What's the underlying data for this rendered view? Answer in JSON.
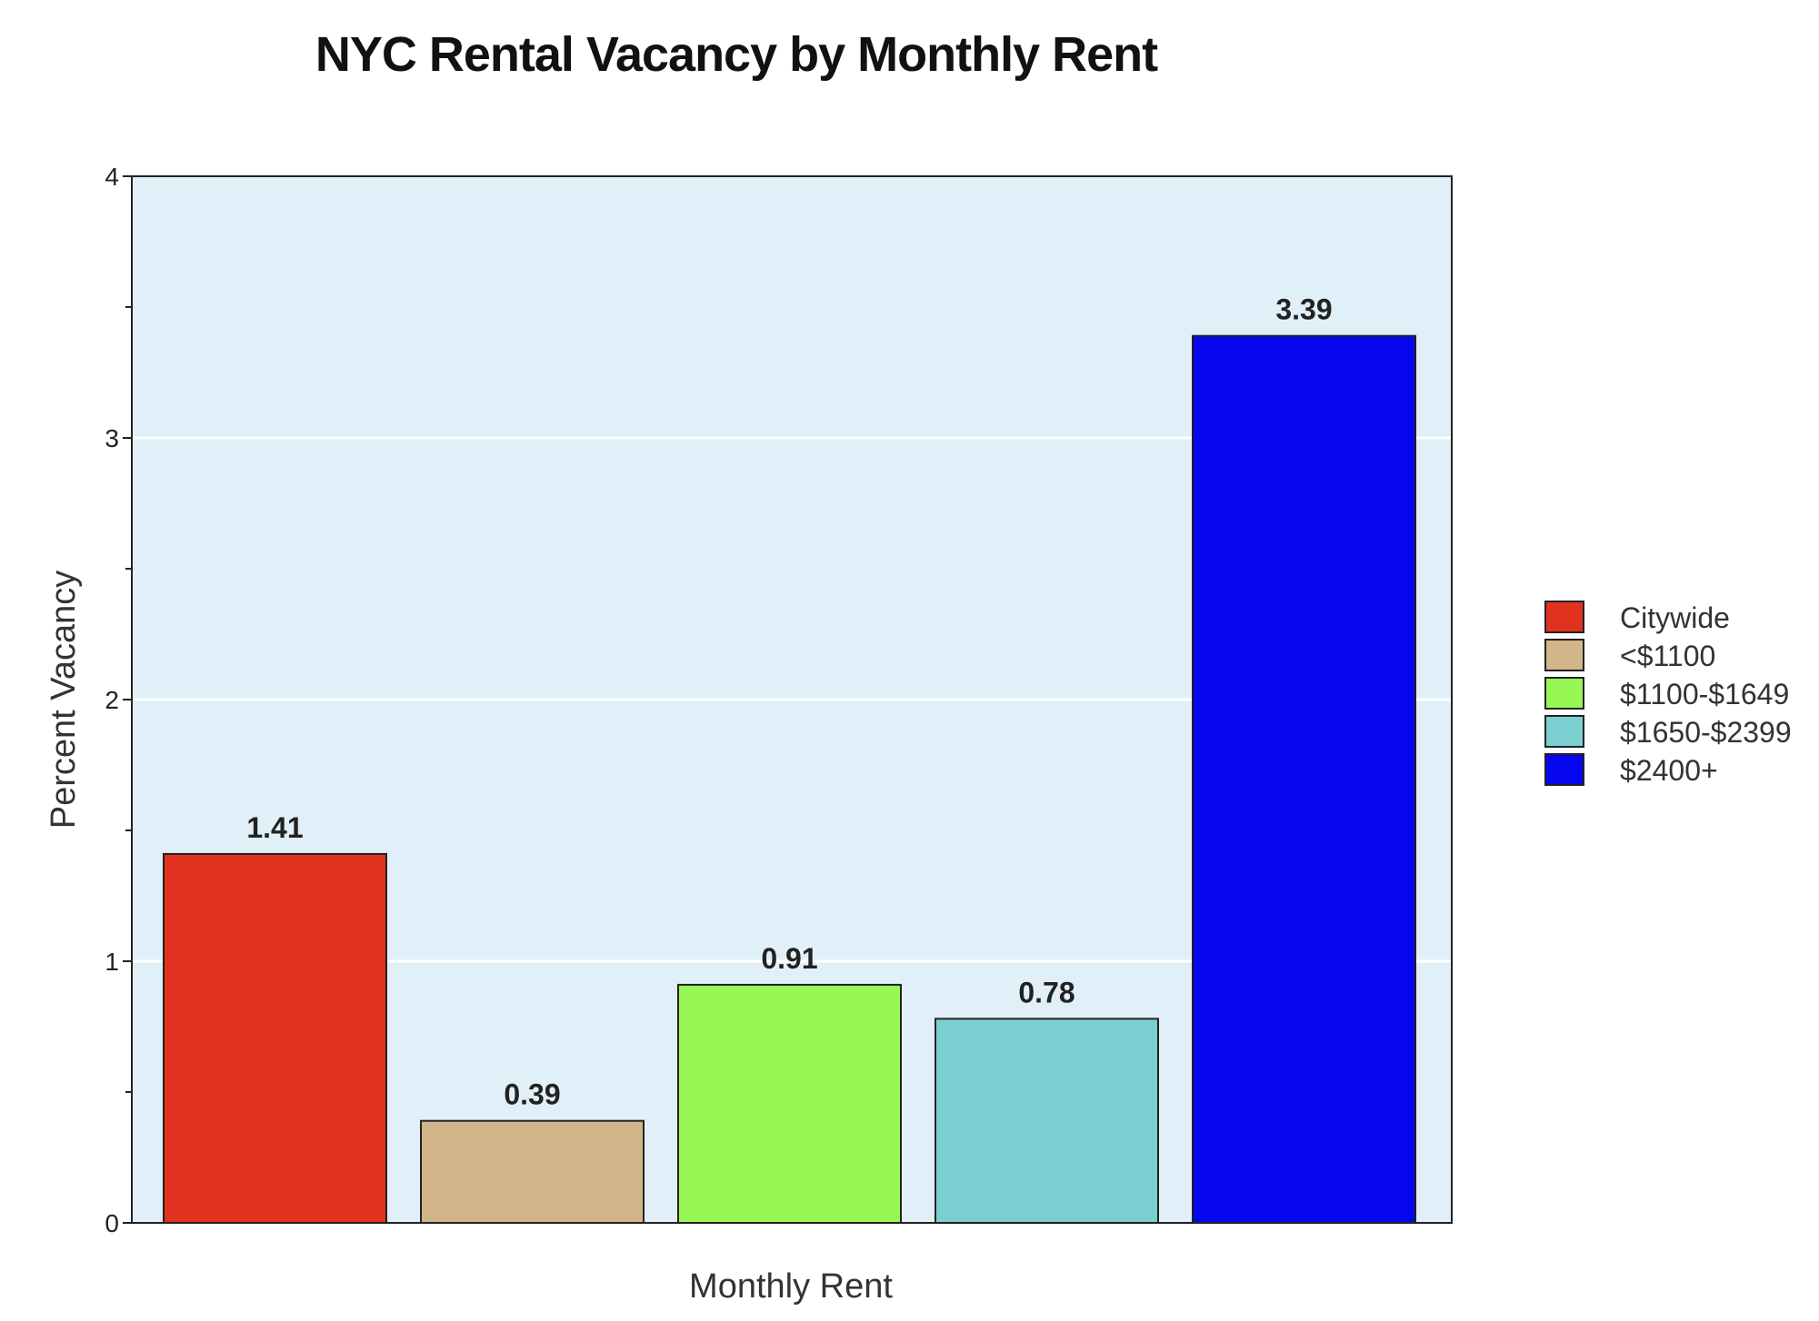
{
  "chart_data": {
    "type": "bar",
    "title": "NYC Rental Vacancy by Monthly Rent",
    "xlabel": "Monthly Rent",
    "ylabel": "Percent Vacancy",
    "ylim": [
      0,
      4
    ],
    "yticks": [
      0,
      1,
      2,
      3,
      4
    ],
    "grid": true,
    "legend_position": "right",
    "categories": [
      "Citywide",
      "<$1100",
      "$1100-$1649",
      "$1650-$2399",
      "$2400+"
    ],
    "values": [
      1.41,
      0.39,
      0.91,
      0.78,
      3.39
    ],
    "data_labels": [
      "1.41",
      "0.39",
      "0.91",
      "0.78",
      "3.39"
    ],
    "colors": [
      "#e0321e",
      "#d2b68a",
      "#97f754",
      "#7ccfd0",
      "#0707ef"
    ],
    "plot_background": "#e1f0f8"
  }
}
